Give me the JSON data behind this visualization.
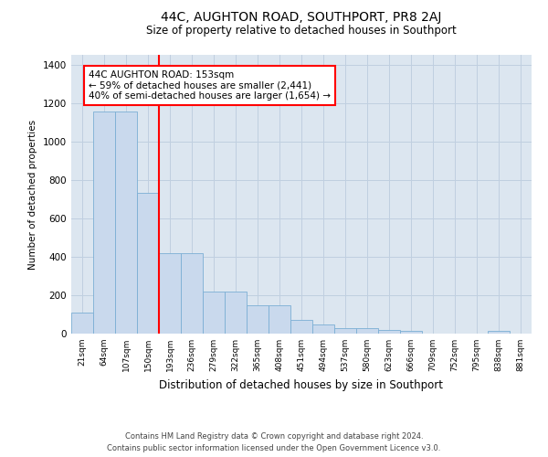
{
  "title": "44C, AUGHTON ROAD, SOUTHPORT, PR8 2AJ",
  "subtitle": "Size of property relative to detached houses in Southport",
  "xlabel": "Distribution of detached houses by size in Southport",
  "ylabel": "Number of detached properties",
  "categories": [
    "21sqm",
    "64sqm",
    "107sqm",
    "150sqm",
    "193sqm",
    "236sqm",
    "279sqm",
    "322sqm",
    "365sqm",
    "408sqm",
    "451sqm",
    "494sqm",
    "537sqm",
    "580sqm",
    "623sqm",
    "666sqm",
    "709sqm",
    "752sqm",
    "795sqm",
    "838sqm",
    "881sqm"
  ],
  "values": [
    110,
    1155,
    1155,
    730,
    420,
    420,
    220,
    220,
    148,
    148,
    70,
    48,
    30,
    30,
    20,
    15,
    0,
    0,
    0,
    15,
    0
  ],
  "bar_color": "#c9d9ed",
  "bar_edge_color": "#7bafd4",
  "grid_color": "#c0cfe0",
  "background_color": "#dce6f0",
  "vline_x": 3.5,
  "vline_color": "red",
  "annotation_text": "44C AUGHTON ROAD: 153sqm\n← 59% of detached houses are smaller (2,441)\n40% of semi-detached houses are larger (1,654) →",
  "footer_line1": "Contains HM Land Registry data © Crown copyright and database right 2024.",
  "footer_line2": "Contains public sector information licensed under the Open Government Licence v3.0.",
  "ylim": [
    0,
    1450
  ],
  "yticks": [
    0,
    200,
    400,
    600,
    800,
    1000,
    1200,
    1400
  ]
}
